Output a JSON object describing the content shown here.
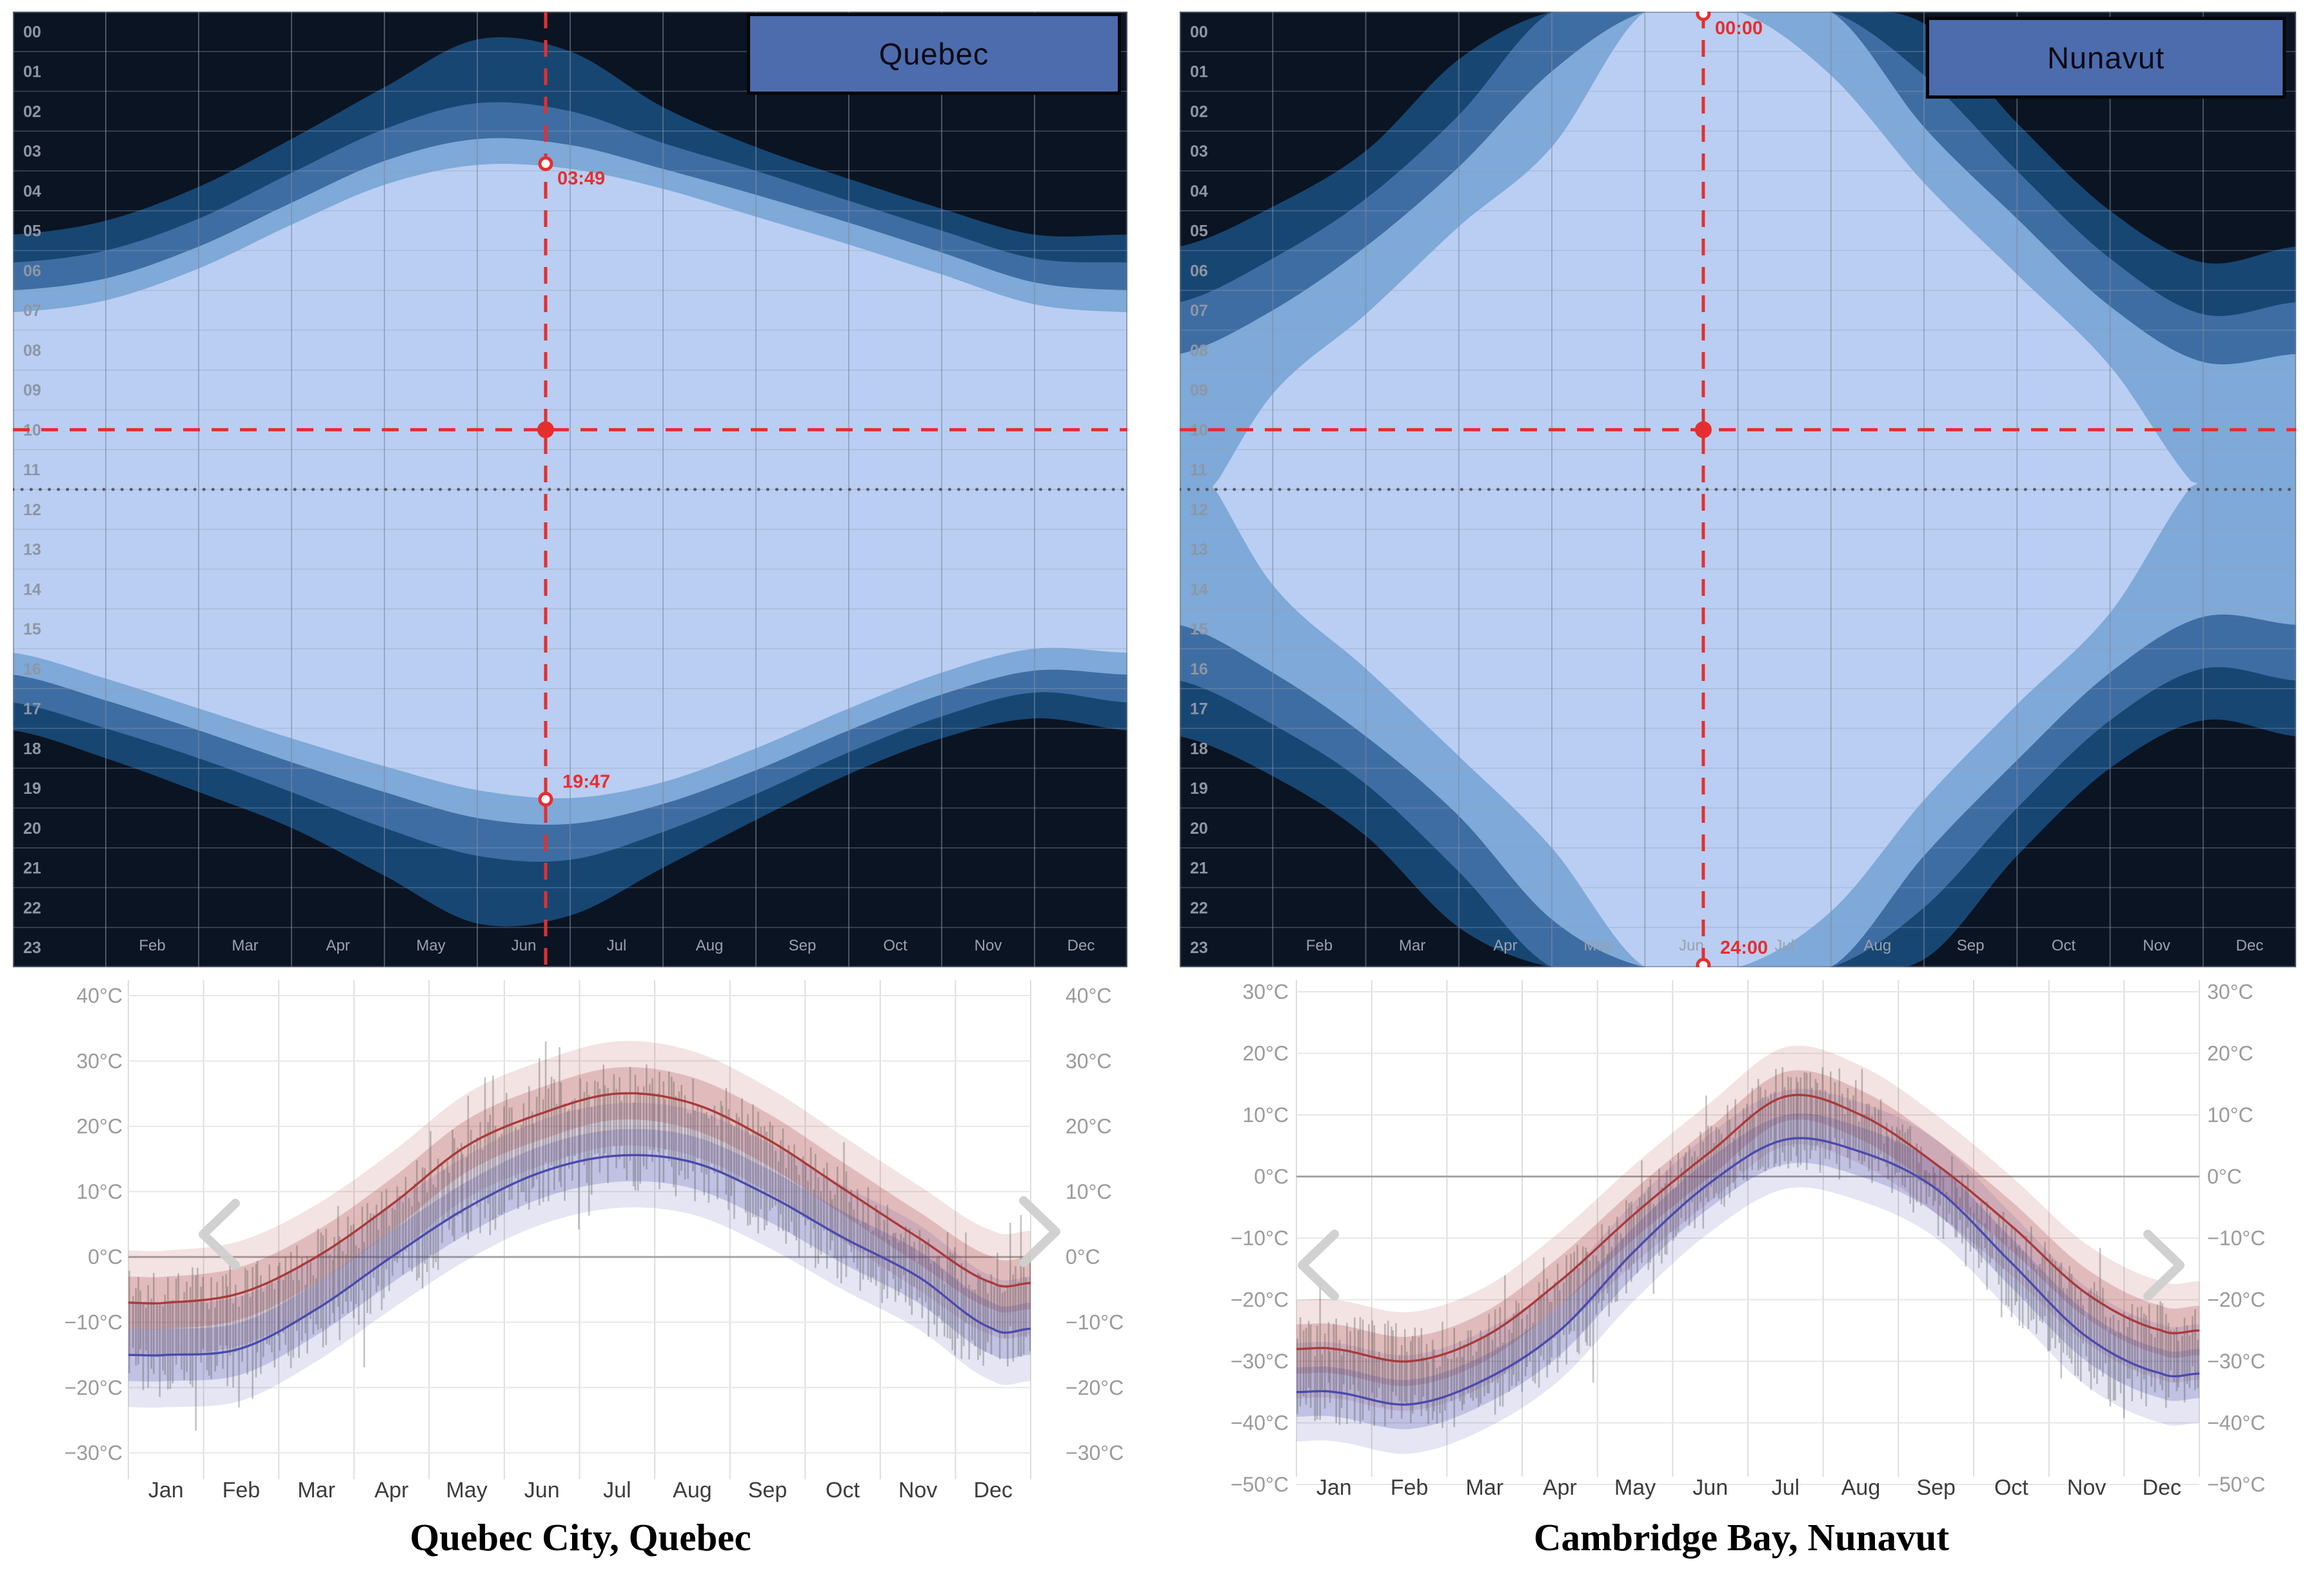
{
  "chart_data": [
    {
      "type": "heatmap",
      "id": "daylight-quebec",
      "region_label": "Quebec",
      "x_categories": [
        "Feb",
        "Mar",
        "Apr",
        "May",
        "Jun",
        "Jul",
        "Aug",
        "Sep",
        "Oct",
        "Nov",
        "Dec"
      ],
      "y_hour_labels": [
        "00",
        "01",
        "02",
        "03",
        "04",
        "05",
        "06",
        "07",
        "08",
        "09",
        "10",
        "11",
        "12",
        "13",
        "14",
        "15",
        "16",
        "17",
        "18",
        "19",
        "20",
        "21",
        "22",
        "23"
      ],
      "ylim": [
        0,
        24
      ],
      "solar_noon_dotted_hour": 12.0,
      "selected_marker": {
        "sunrise_label": "03:49",
        "sunset_label": "19:47",
        "sunrise_hour": 3.82,
        "sunset_hour": 19.78,
        "day_fraction": 0.478,
        "crosshair_hour": 10.5
      },
      "series": {
        "dawn_astro": [
          5.6,
          5.25,
          4.4,
          3.2,
          1.9,
          0.7,
          1.0,
          2.4,
          3.4,
          4.2,
          4.95,
          5.6,
          5.6
        ],
        "dawn_naut": [
          6.3,
          6.0,
          5.2,
          4.05,
          2.95,
          2.3,
          2.5,
          3.3,
          4.0,
          4.75,
          5.5,
          6.2,
          6.3
        ],
        "dawn_civil": [
          7.0,
          6.7,
          5.9,
          4.8,
          3.75,
          3.2,
          3.35,
          3.95,
          4.6,
          5.3,
          6.05,
          6.8,
          7.0
        ],
        "sunrise": [
          7.55,
          7.25,
          6.45,
          5.35,
          4.35,
          3.85,
          3.95,
          4.45,
          5.15,
          5.85,
          6.6,
          7.35,
          7.55
        ],
        "sunset": [
          16.1,
          16.75,
          17.5,
          18.25,
          18.95,
          19.55,
          19.75,
          19.35,
          18.5,
          17.5,
          16.6,
          16.0,
          16.1
        ],
        "dusk_civil": [
          16.65,
          17.3,
          18.05,
          18.85,
          19.6,
          20.25,
          20.4,
          19.9,
          19.05,
          18.05,
          17.15,
          16.55,
          16.65
        ],
        "dusk_naut": [
          17.35,
          18.0,
          18.75,
          19.6,
          20.5,
          21.2,
          21.3,
          20.6,
          19.65,
          18.6,
          17.7,
          17.1,
          17.35
        ],
        "dusk_astro": [
          18.05,
          18.75,
          19.6,
          20.5,
          21.7,
          22.9,
          22.7,
          21.5,
          20.3,
          19.15,
          18.25,
          17.75,
          18.05
        ]
      },
      "palette": {
        "night": "#0b1422",
        "astro": "#174673",
        "nautical": "#3e6da3",
        "civil": "#7ea9d8",
        "day": "#b9cef2",
        "crosshair": "#e62e2e"
      }
    },
    {
      "type": "line",
      "id": "temperature-quebec-city",
      "title": "Quebec City, Quebec",
      "x_categories": [
        "Jan",
        "Feb",
        "Mar",
        "Apr",
        "May",
        "Jun",
        "Jul",
        "Aug",
        "Sep",
        "Oct",
        "Nov",
        "Dec"
      ],
      "unit": "°C",
      "y_ticks_c": [
        40,
        30,
        20,
        10,
        0,
        -10,
        -20,
        -30
      ],
      "series": [
        {
          "name": "average_daily_high_c",
          "color": "#a93a3a",
          "values": [
            -7,
            -5.5,
            0,
            8,
            17,
            22,
            25,
            23.5,
            18,
            10.5,
            3,
            -4
          ]
        },
        {
          "name": "average_daily_low_c",
          "color": "#4a4aae",
          "values": [
            -15,
            -14,
            -8,
            0,
            7.5,
            13,
            15.5,
            14.5,
            9.5,
            3,
            -3,
            -11
          ]
        }
      ],
      "band_inner_halfwidth_c": 4,
      "band_outer_halfwidth_c": 8
    },
    {
      "type": "heatmap",
      "id": "daylight-nunavut",
      "region_label": "Nunavut",
      "x_categories": [
        "Feb",
        "Mar",
        "Apr",
        "May",
        "Jun",
        "Jul",
        "Aug",
        "Sep",
        "Oct",
        "Nov",
        "Dec"
      ],
      "y_hour_labels": [
        "00",
        "01",
        "02",
        "03",
        "04",
        "05",
        "06",
        "07",
        "08",
        "09",
        "10",
        "11",
        "12",
        "13",
        "14",
        "15",
        "16",
        "17",
        "18",
        "19",
        "20",
        "21",
        "22",
        "23"
      ],
      "ylim": [
        0,
        24
      ],
      "solar_noon_dotted_hour": 12.0,
      "selected_marker": {
        "sunrise_label": "00:00",
        "sunset_label": "24:00",
        "sunrise_hour": 0.05,
        "sunset_hour": 23.95,
        "day_fraction": 0.469,
        "crosshair_hour": 10.5
      },
      "series": {
        "dawn_astro": [
          5.9,
          4.9,
          3.5,
          1.2,
          0.0,
          0.0,
          0.0,
          0.0,
          0.3,
          2.8,
          5.0,
          6.3,
          5.9
        ],
        "dawn_naut": [
          7.3,
          6.2,
          4.7,
          2.6,
          0.0,
          0.0,
          0.0,
          0.0,
          1.6,
          4.0,
          6.2,
          7.6,
          7.3
        ],
        "dawn_civil": [
          8.6,
          7.5,
          5.9,
          3.9,
          1.5,
          0.0,
          0.0,
          0.0,
          2.9,
          5.2,
          7.4,
          8.8,
          8.6
        ],
        "sunrise": [
          13.0,
          9.6,
          7.6,
          5.4,
          3.4,
          0.0,
          0.0,
          1.6,
          4.3,
          6.6,
          8.9,
          12.1,
          13.0
        ],
        "sunset": [
          10.8,
          14.4,
          16.5,
          18.7,
          21.0,
          24.0,
          24.0,
          22.6,
          19.8,
          17.4,
          15.1,
          11.6,
          10.8
        ],
        "dusk_civil": [
          15.4,
          16.6,
          18.2,
          20.2,
          22.8,
          24.0,
          24.0,
          24.0,
          21.2,
          18.8,
          16.6,
          15.2,
          15.4
        ],
        "dusk_naut": [
          16.8,
          17.9,
          19.4,
          21.6,
          24.0,
          24.0,
          24.0,
          24.0,
          22.5,
          20.0,
          17.8,
          16.5,
          16.8
        ],
        "dusk_astro": [
          18.2,
          19.2,
          20.7,
          23.0,
          24.0,
          24.0,
          24.0,
          24.0,
          23.8,
          21.2,
          19.0,
          17.8,
          18.2
        ]
      },
      "palette": {
        "night": "#0b1422",
        "astro": "#174673",
        "nautical": "#3e6da3",
        "civil": "#7ea9d8",
        "day": "#b9cef2",
        "crosshair": "#e62e2e"
      }
    },
    {
      "type": "line",
      "id": "temperature-cambridge-bay",
      "title": "Cambridge Bay, Nunavut",
      "x_categories": [
        "Jan",
        "Feb",
        "Mar",
        "Apr",
        "May",
        "Jun",
        "Jul",
        "Aug",
        "Sep",
        "Oct",
        "Nov",
        "Dec"
      ],
      "unit": "°C",
      "y_ticks_c": [
        30,
        20,
        10,
        0,
        -10,
        -20,
        -30,
        -40,
        -50
      ],
      "series": [
        {
          "name": "average_daily_high_c",
          "color": "#a93a3a",
          "values": [
            -28,
            -30,
            -26,
            -17,
            -6,
            4,
            13,
            10,
            2,
            -8,
            -19,
            -25
          ]
        },
        {
          "name": "average_daily_low_c",
          "color": "#4a4aae",
          "values": [
            -35,
            -37,
            -33,
            -25,
            -12,
            -1,
            6,
            4,
            -2,
            -14,
            -26,
            -32
          ]
        }
      ],
      "band_inner_halfwidth_c": 4,
      "band_outer_halfwidth_c": 8
    }
  ]
}
